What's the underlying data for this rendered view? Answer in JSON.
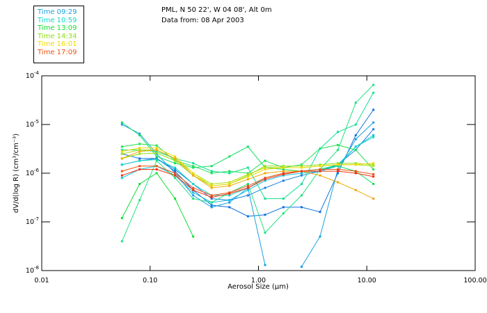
{
  "chart_data": {
    "type": "line",
    "title": "PML, N 50 22', W 04 08', Alt 0m",
    "subtitle": "Data from: 08 Apr 2003",
    "xlabel": "Aerosol Size (µm)",
    "ylabel": "dV/d(log R) (cm³/cm⁻³)",
    "xscale": "log",
    "yscale": "log",
    "xlim": [
      0.01,
      100
    ],
    "ylim": [
      1e-08,
      0.0001
    ],
    "x_tick_labels": [
      "0.01",
      "0.10",
      "1.00",
      "10.00",
      "100.00"
    ],
    "x_ticks": [
      0.01,
      0.1,
      1,
      10,
      100
    ],
    "y_ticks": [
      1e-08,
      1e-07,
      1e-06,
      1e-05,
      0.0001
    ],
    "y_tick_labels": [
      {
        "base": "10",
        "exp": "-8"
      },
      {
        "base": "10",
        "exp": "-7"
      },
      {
        "base": "10",
        "exp": "-6"
      },
      {
        "base": "10",
        "exp": "-5"
      },
      {
        "base": "10",
        "exp": "-4"
      }
    ],
    "legend_placement": "top-left (outside plot)",
    "legend": [
      {
        "label": "Time 09:29",
        "color": "#1a9fe0"
      },
      {
        "label": "Time 10:59",
        "color": "#10d8c8"
      },
      {
        "label": "Time 13:09",
        "color": "#10e030"
      },
      {
        "label": "Time 14:34",
        "color": "#8fe010"
      },
      {
        "label": "Time 16:01",
        "color": "#f0d800"
      },
      {
        "label": "Time 17:09",
        "color": "#f05010"
      }
    ],
    "x": [
      0.055,
      0.08,
      0.115,
      0.17,
      0.25,
      0.37,
      0.54,
      0.8,
      1.15,
      1.7,
      2.5,
      3.7,
      5.4,
      7.9,
      11.5
    ],
    "series": [
      {
        "name": "09:29 a",
        "color": "#1070e0",
        "values": [
          2.5e-06,
          2e-06,
          2e-06,
          1.1e-06,
          4.5e-07,
          2.2e-07,
          2e-07,
          1.3e-07,
          1.4e-07,
          2e-07,
          2e-07,
          1.6e-07,
          1e-06,
          6e-06,
          2e-05
        ]
      },
      {
        "name": "09:29 b",
        "color": "#1a9fe0",
        "values": [
          1e-05,
          6.5e-06,
          2.5e-06,
          1e-06,
          3.5e-07,
          2e-07,
          2.5e-07,
          5e-07,
          1.3e-08,
          null,
          1.2e-08,
          5e-08,
          1.2e-06,
          5e-06,
          1.1e-05
        ]
      },
      {
        "name": "09:29 c",
        "color": "#1a80e0",
        "values": [
          1.5e-06,
          1.8e-06,
          2e-06,
          1.2e-06,
          6e-07,
          3e-07,
          2.8e-07,
          3.5e-07,
          5e-07,
          7e-07,
          9e-07,
          1.1e-06,
          1.5e-06,
          3e-06,
          8e-06
        ]
      },
      {
        "name": "10:59 a",
        "color": "#10c0e0",
        "values": [
          8e-07,
          1.2e-06,
          1.4e-06,
          9e-07,
          4e-07,
          2.5e-07,
          2.8e-07,
          4.5e-07,
          7e-07,
          9e-07,
          1e-06,
          1.1e-06,
          1.4e-06,
          3.5e-06,
          6e-06
        ]
      },
      {
        "name": "10:59 b",
        "color": "#10d8c8",
        "values": [
          1.5e-06,
          1.8e-06,
          1.9e-06,
          1.3e-06,
          6e-07,
          3.5e-07,
          3.5e-07,
          5e-07,
          8e-07,
          1e-06,
          1.1e-06,
          1.2e-06,
          1.5e-06,
          3.5e-06,
          5.5e-06
        ]
      },
      {
        "name": "13:09 a",
        "color": "#10e060",
        "values": [
          1.1e-05,
          6e-06,
          2.2e-06,
          1.6e-06,
          1.3e-06,
          1.4e-06,
          2.2e-06,
          3.5e-06,
          1.3e-06,
          1.2e-06,
          1.1e-06,
          1.2e-06,
          1.4e-06,
          1.1e-06,
          6e-07
        ]
      },
      {
        "name": "13:09 b",
        "color": "#10e030",
        "values": [
          1.2e-07,
          6e-07,
          1e-06,
          3e-07,
          5e-08,
          null,
          null,
          null,
          null,
          null,
          null,
          null,
          null,
          null,
          null
        ]
      },
      {
        "name": "13:09 c",
        "color": "#20e080",
        "values": [
          4e-08,
          2.8e-07,
          1.8e-06,
          8e-07,
          3e-07,
          2.5e-07,
          4e-07,
          6e-07,
          6e-08,
          1.5e-07,
          3.5e-07,
          1.2e-06,
          3e-06,
          2.8e-05,
          6.5e-05
        ]
      },
      {
        "name": "13:09 d",
        "color": "#20e050",
        "values": [
          3.5e-06,
          4e-06,
          3.7e-06,
          1.8e-06,
          1.4e-06,
          1e-06,
          1.1e-06,
          1e-06,
          1.8e-06,
          1.3e-06,
          1.5e-06,
          3.2e-06,
          3.8e-06,
          3e-06,
          1.2e-06
        ]
      },
      {
        "name": "13:09 e",
        "color": "#10e090",
        "values": [
          3e-06,
          3e-06,
          2.8e-06,
          2e-06,
          1.6e-06,
          1.1e-06,
          1e-06,
          1.3e-06,
          3e-07,
          3e-07,
          6e-07,
          3.2e-06,
          7e-06,
          1e-05,
          4.5e-05
        ]
      },
      {
        "name": "14:34 a",
        "color": "#8fe010",
        "values": [
          2e-06,
          2.5e-06,
          2.6e-06,
          1.8e-06,
          9e-07,
          5.5e-07,
          6e-07,
          9e-07,
          1.4e-06,
          1.4e-06,
          1.4e-06,
          1.5e-06,
          1.6e-06,
          1.6e-06,
          1.5e-06
        ]
      },
      {
        "name": "14:34 b",
        "color": "#b0e010",
        "values": [
          2.5e-06,
          3e-06,
          3e-06,
          2e-06,
          1e-06,
          6e-07,
          6.5e-07,
          9.5e-07,
          1.3e-06,
          1.3e-06,
          1.3e-06,
          1.4e-06,
          1.5e-06,
          1.5e-06,
          1.4e-06
        ]
      },
      {
        "name": "16:01 a",
        "color": "#f0d800",
        "values": [
          2.8e-06,
          3.3e-06,
          3.3e-06,
          2.2e-06,
          1e-06,
          5.5e-07,
          6e-07,
          8.5e-07,
          1.2e-06,
          1.3e-06,
          1.3e-06,
          1.4e-06,
          1.5e-06,
          1.5e-06,
          1.6e-06
        ]
      },
      {
        "name": "16:01 b",
        "color": "#f0a800",
        "values": [
          2e-06,
          2.8e-06,
          3e-06,
          2e-06,
          9e-07,
          5e-07,
          5.5e-07,
          7.5e-07,
          1e-06,
          1.1e-06,
          1.1e-06,
          9e-07,
          6.5e-07,
          4.5e-07,
          3e-07
        ]
      },
      {
        "name": "17:09 a",
        "color": "#f05010",
        "values": [
          1.1e-06,
          1.4e-06,
          1.4e-06,
          1e-06,
          5e-07,
          3.5e-07,
          4e-07,
          5.5e-07,
          8e-07,
          1e-06,
          1.1e-06,
          1.2e-06,
          1.2e-06,
          1.1e-06,
          9.5e-07
        ]
      },
      {
        "name": "17:09 b",
        "color": "#f03010",
        "values": [
          9e-07,
          1.2e-06,
          1.2e-06,
          9e-07,
          4.5e-07,
          3.2e-07,
          3.8e-07,
          5e-07,
          7.5e-07,
          9.5e-07,
          1.1e-06,
          1.1e-06,
          1.1e-06,
          1e-06,
          8.5e-07
        ]
      }
    ]
  }
}
